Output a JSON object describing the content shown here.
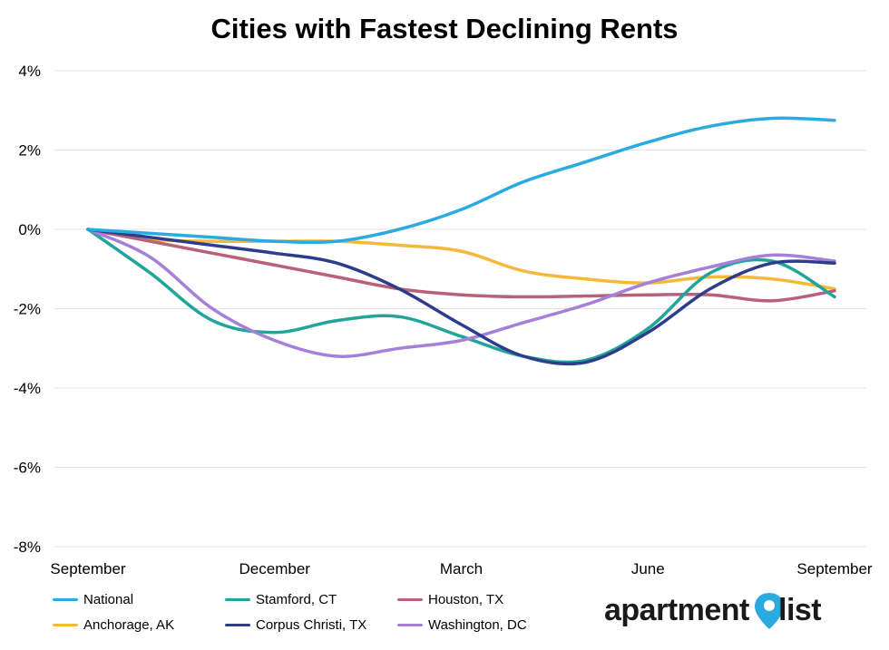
{
  "chart_data": {
    "type": "line",
    "title": "Cities with Fastest Declining Rents",
    "xlabel": "",
    "ylabel": "",
    "x_tick_labels": [
      "September",
      "December",
      "March",
      "June",
      "September"
    ],
    "x_tick_positions": [
      0,
      3,
      6,
      9,
      12
    ],
    "y_ticks": [
      4,
      2,
      0,
      -2,
      -4,
      -6,
      -8
    ],
    "y_tick_labels": [
      "4%",
      "2%",
      "0%",
      "-2%",
      "-4%",
      "-6%",
      "-8%"
    ],
    "ylim": [
      -8,
      4
    ],
    "xlim": [
      0,
      12
    ],
    "grid": "horizontal",
    "legend_position": "bottom-left",
    "series": [
      {
        "name": "National",
        "color": "#29ABE2",
        "x": [
          0,
          1,
          2,
          3,
          4,
          5,
          6,
          7,
          8,
          9,
          10,
          11,
          12
        ],
        "values": [
          0,
          -0.1,
          -0.2,
          -0.3,
          -0.3,
          0.0,
          0.5,
          1.2,
          1.7,
          2.2,
          2.6,
          2.8,
          2.75
        ]
      },
      {
        "name": "Stamford, CT",
        "color": "#1FA59A",
        "x": [
          0,
          1,
          2,
          3,
          4,
          5,
          6,
          7,
          8,
          9,
          10,
          11,
          12
        ],
        "values": [
          0,
          -1.1,
          -2.3,
          -2.6,
          -2.3,
          -2.2,
          -2.7,
          -3.2,
          -3.3,
          -2.5,
          -1.1,
          -0.8,
          -1.7
        ]
      },
      {
        "name": "Houston, TX",
        "color": "#B9607A",
        "x": [
          0,
          1,
          2,
          3,
          4,
          5,
          6,
          7,
          8,
          9,
          10,
          11,
          12
        ],
        "values": [
          0,
          -0.3,
          -0.6,
          -0.9,
          -1.2,
          -1.5,
          -1.65,
          -1.7,
          -1.68,
          -1.65,
          -1.65,
          -1.8,
          -1.55
        ]
      },
      {
        "name": "Anchorage, AK",
        "color": "#F4B83A",
        "x": [
          0,
          1,
          2,
          3,
          4,
          5,
          6,
          7,
          8,
          9,
          10,
          11,
          12
        ],
        "values": [
          0,
          -0.25,
          -0.3,
          -0.3,
          -0.3,
          -0.4,
          -0.55,
          -1.05,
          -1.25,
          -1.35,
          -1.2,
          -1.25,
          -1.5
        ]
      },
      {
        "name": "Corpus Christi, TX",
        "color": "#2E3C8C",
        "x": [
          0,
          1,
          2,
          3,
          4,
          5,
          6,
          7,
          8,
          9,
          10,
          11,
          12
        ],
        "values": [
          0,
          -0.2,
          -0.4,
          -0.6,
          -0.85,
          -1.5,
          -2.4,
          -3.2,
          -3.35,
          -2.6,
          -1.5,
          -0.85,
          -0.85
        ]
      },
      {
        "name": "Washington, DC",
        "color": "#A57FD8",
        "x": [
          0,
          1,
          2,
          3,
          4,
          5,
          6,
          7,
          8,
          9,
          10,
          11,
          12
        ],
        "values": [
          0,
          -0.7,
          -2.0,
          -2.8,
          -3.2,
          -3.0,
          -2.8,
          -2.35,
          -1.9,
          -1.35,
          -0.95,
          -0.65,
          -0.8
        ]
      }
    ]
  },
  "legend": {
    "items": [
      {
        "label": "National",
        "color": "#29ABE2"
      },
      {
        "label": "Stamford, CT",
        "color": "#1FA59A"
      },
      {
        "label": "Houston, TX",
        "color": "#B9607A"
      },
      {
        "label": "Anchorage, AK",
        "color": "#F4B83A"
      },
      {
        "label": "Corpus Christi, TX",
        "color": "#2E3C8C"
      },
      {
        "label": "Washington, DC",
        "color": "#A57FD8"
      }
    ]
  },
  "logo": {
    "word1": "apartment",
    "word2": "list",
    "pin_color": "#29ABE2"
  }
}
